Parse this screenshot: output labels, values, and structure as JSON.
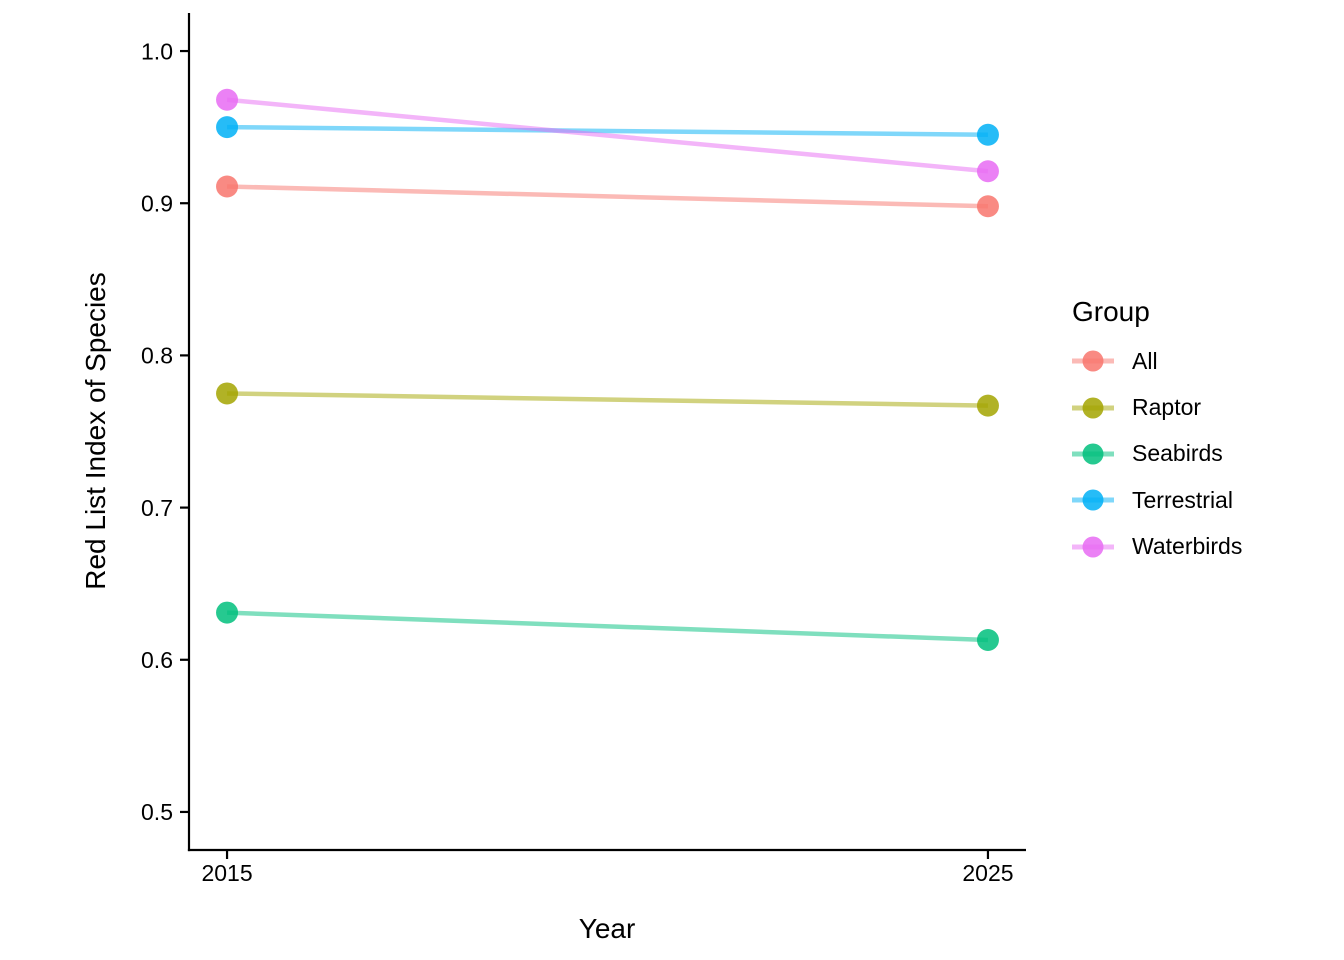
{
  "figure": {
    "background": "#FFFFFF",
    "text_color": "#000000",
    "axis_color": "#000000"
  },
  "chart_data": {
    "type": "line",
    "title": "",
    "xlabel": "Year",
    "ylabel": "Red List Index of Species",
    "x": [
      2015,
      2025
    ],
    "x_tick_labels": [
      "2015",
      "2025"
    ],
    "xlim": [
      2014.5,
      2025.5
    ],
    "y_ticks": [
      0.5,
      0.6,
      0.7,
      0.8,
      0.9,
      1.0
    ],
    "y_tick_labels": [
      "0.5",
      "0.6",
      "0.7",
      "0.8",
      "0.9",
      "1.0"
    ],
    "ylim": [
      0.475,
      1.025
    ],
    "grid": false,
    "legend": {
      "title": "Group",
      "position": "right"
    },
    "series": [
      {
        "name": "All",
        "color": "#F8766D",
        "values": [
          0.911,
          0.898
        ]
      },
      {
        "name": "Raptor",
        "color": "#A3A500",
        "values": [
          0.775,
          0.767
        ]
      },
      {
        "name": "Seabirds",
        "color": "#00BF7D",
        "values": [
          0.631,
          0.613
        ]
      },
      {
        "name": "Terrestrial",
        "color": "#00B0F6",
        "values": [
          0.95,
          0.945
        ]
      },
      {
        "name": "Waterbirds",
        "color": "#E76BF3",
        "values": [
          0.968,
          0.921
        ]
      }
    ],
    "style": {
      "line_opacity": 0.5,
      "point_opacity": 0.85
    }
  }
}
